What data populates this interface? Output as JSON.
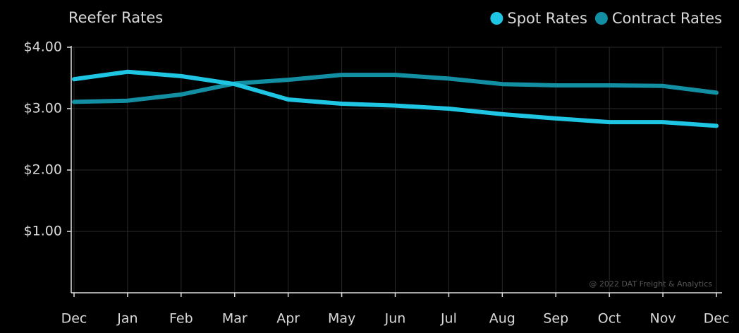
{
  "chart_data": {
    "type": "line",
    "title": "Reefer Rates",
    "categories": [
      "Dec",
      "Jan",
      "Feb",
      "Mar",
      "Apr",
      "May",
      "Jun",
      "Jul",
      "Aug",
      "Sep",
      "Oct",
      "Nov",
      "Dec"
    ],
    "series": [
      {
        "name": "Spot Rates",
        "color": "#1fc6e4",
        "values": [
          3.48,
          3.6,
          3.53,
          3.4,
          3.15,
          3.08,
          3.05,
          3.0,
          2.91,
          2.84,
          2.78,
          2.78,
          2.72
        ]
      },
      {
        "name": "Contract Rates",
        "color": "#138fa4",
        "values": [
          3.11,
          3.13,
          3.23,
          3.41,
          3.47,
          3.55,
          3.55,
          3.49,
          3.4,
          3.38,
          3.38,
          3.37,
          3.26
        ]
      }
    ],
    "ylim": [
      0,
      4
    ],
    "yticks": [
      {
        "value": 1,
        "label": "$1.00"
      },
      {
        "value": 2,
        "label": "$2.00"
      },
      {
        "value": 3,
        "label": "$3.00"
      },
      {
        "value": 4,
        "label": "$4.00"
      }
    ],
    "grid": true,
    "legend": "top-right",
    "annotation": "@ 2022 DAT Freight & Analytics"
  }
}
